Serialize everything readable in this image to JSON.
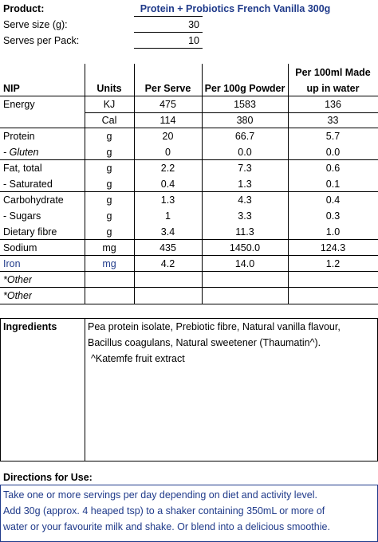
{
  "header": {
    "product_label": "Product:",
    "product_name": "Protein + Probiotics French Vanilla 300g",
    "serve_size_label": "Serve size (g):",
    "serve_size_value": "30",
    "serves_per_pack_label": "Serves per Pack:",
    "serves_per_pack_value": "10"
  },
  "table": {
    "headers": {
      "nip": "NIP",
      "units": "Units",
      "per_serve": "Per Serve",
      "per_100g": "Per 100g Powder",
      "per_100ml_line1": "Per 100ml Made",
      "per_100ml_line2": "up in water"
    },
    "rows": [
      {
        "name": "Energy",
        "unit": "KJ",
        "serve": "475",
        "p100g": "1583",
        "p100ml": "136"
      },
      {
        "name": "",
        "unit": "Cal",
        "serve": "114",
        "p100g": "380",
        "p100ml": "33"
      },
      {
        "name": "Protein",
        "unit": "g",
        "serve": "20",
        "p100g": "66.7",
        "p100ml": "5.7"
      },
      {
        "name": "- Gluten",
        "unit": "g",
        "serve": "0",
        "p100g": "0.0",
        "p100ml": "0.0"
      },
      {
        "name": "Fat, total",
        "unit": "g",
        "serve": "2.2",
        "p100g": "7.3",
        "p100ml": "0.6"
      },
      {
        "name": "- Saturated",
        "unit": "g",
        "serve": "0.4",
        "p100g": "1.3",
        "p100ml": "0.1"
      },
      {
        "name": "Carbohydrate",
        "unit": "g",
        "serve": "1.3",
        "p100g": "4.3",
        "p100ml": "0.4"
      },
      {
        "name": "- Sugars",
        "unit": "g",
        "serve": "1",
        "p100g": "3.3",
        "p100ml": "0.3"
      },
      {
        "name": "Dietary fibre",
        "unit": "g",
        "serve": "3.4",
        "p100g": "11.3",
        "p100ml": "1.0"
      },
      {
        "name": "Sodium",
        "unit": "mg",
        "serve": "435",
        "p100g": "1450.0",
        "p100ml": "124.3"
      },
      {
        "name": "Iron",
        "unit": "mg",
        "serve": "4.2",
        "p100g": "14.0",
        "p100ml": "1.2"
      },
      {
        "name": "*Other",
        "unit": "",
        "serve": "",
        "p100g": "",
        "p100ml": ""
      },
      {
        "name": "*Other",
        "unit": "",
        "serve": "",
        "p100g": "",
        "p100ml": ""
      }
    ]
  },
  "ingredients": {
    "label": "Ingredients",
    "line1": "Pea protein isolate, Prebiotic fibre, Natural vanilla flavour,",
    "line2": "Bacillus coagulans, Natural sweetener (Thaumatin^).",
    "line3": "^Katemfe fruit extract"
  },
  "directions": {
    "label": "Directions for Use:",
    "line1": "Take one or more servings per day depending on diet and activity level.",
    "line2": "Add 30g (approx. 4 heaped tsp) to a shaker containing 350mL or more of",
    "line3": "water or your favourite milk and shake. Or blend into a delicious smoothie."
  },
  "colors": {
    "blue_text": "#1f3a8a",
    "lines": "#000000"
  }
}
